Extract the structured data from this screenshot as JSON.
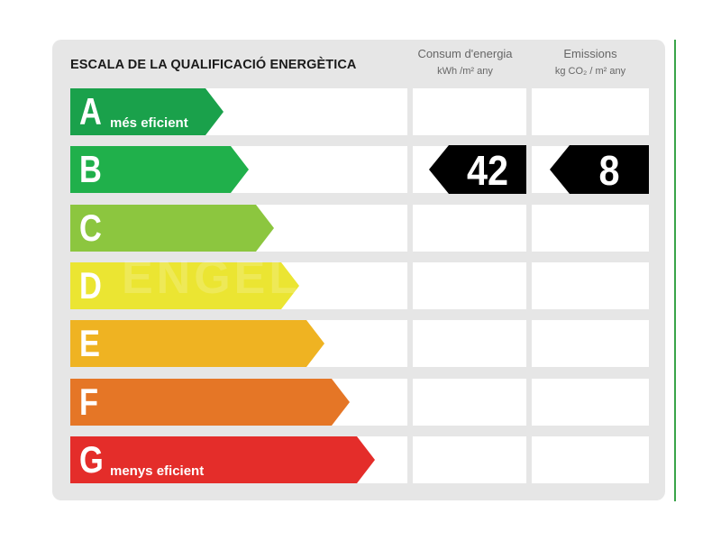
{
  "title": "ESCALA DE LA QUALIFICACIÓ ENERGÈTICA",
  "columns": {
    "consum": {
      "label": "Consum d'energia",
      "unit": "kWh /m² any"
    },
    "emissions": {
      "label": "Emissions",
      "unit": "kg CO₂ / m² any"
    }
  },
  "ratings": [
    {
      "letter": "A",
      "caption": "més eficient",
      "color": "#1aa14b"
    },
    {
      "letter": "B",
      "caption": "",
      "color": "#20b04b"
    },
    {
      "letter": "C",
      "caption": "",
      "color": "#8cc63f"
    },
    {
      "letter": "D",
      "caption": "",
      "color": "#ebe532"
    },
    {
      "letter": "E",
      "caption": "",
      "color": "#efb322"
    },
    {
      "letter": "F",
      "caption": "",
      "color": "#e57626"
    },
    {
      "letter": "G",
      "caption": "menys eficient",
      "color": "#e42d2a"
    }
  ],
  "result": {
    "rating": "B",
    "consum_value": "42",
    "emissions_value": "8",
    "badge_color": "#000000"
  },
  "watermark": "ENGEL"
}
